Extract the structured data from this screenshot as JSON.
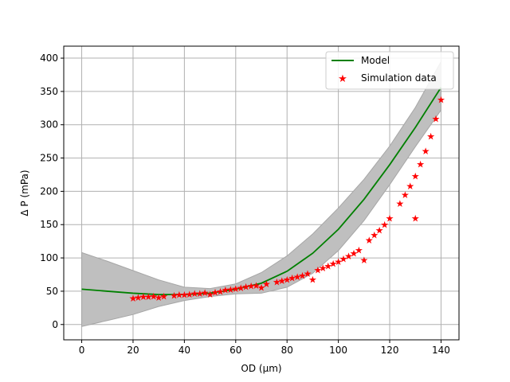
{
  "chart_data": {
    "type": "line",
    "title": "",
    "xlabel": "OD (µm)",
    "ylabel": "Δ P (mPa)",
    "xlim": [
      -7,
      147
    ],
    "ylim": [
      -23,
      418
    ],
    "xticks": [
      0,
      20,
      40,
      60,
      80,
      100,
      120,
      140
    ],
    "yticks": [
      0,
      50,
      100,
      150,
      200,
      250,
      300,
      350,
      400
    ],
    "grid": true,
    "legend": {
      "position": "upper-right"
    },
    "colors": {
      "model": "#008000",
      "band": "#bfbfbf",
      "band_edge": "#a6a6a6",
      "simulation": "#ff0000",
      "grid": "#b0b0b0"
    },
    "series": [
      {
        "name": "Model",
        "kind": "line",
        "x": [
          0,
          10,
          20,
          30,
          40,
          50,
          60,
          70,
          80,
          90,
          100,
          110,
          120,
          130,
          140
        ],
        "y": [
          53,
          50,
          47,
          45,
          45,
          47,
          53,
          62,
          80,
          107,
          143,
          188,
          240,
          296,
          356
        ]
      },
      {
        "name": "confidence band",
        "kind": "band",
        "x": [
          0,
          10,
          20,
          30,
          40,
          50,
          60,
          70,
          80,
          90,
          100,
          110,
          120,
          130,
          140
        ],
        "upper": [
          108,
          95,
          81,
          67,
          56,
          54,
          61,
          78,
          103,
          136,
          175,
          218,
          268,
          326,
          395
        ],
        "lower": [
          -3,
          6,
          15,
          27,
          36,
          42,
          46,
          47,
          56,
          77,
          111,
          156,
          210,
          267,
          322
        ]
      },
      {
        "name": "Simulation data",
        "kind": "scatter",
        "x": [
          20,
          22,
          24,
          26,
          28,
          30,
          32,
          36,
          38,
          40,
          42,
          44,
          46,
          48,
          50,
          52,
          54,
          56,
          58,
          60,
          62,
          64,
          66,
          68,
          70,
          72,
          76,
          78,
          80,
          82,
          84,
          86,
          88,
          90,
          92,
          94,
          96,
          98,
          100,
          102,
          104,
          106,
          108,
          110,
          112,
          114,
          116,
          118,
          120,
          124,
          126,
          128,
          130,
          130,
          132,
          134,
          136,
          138,
          140
        ],
        "y": [
          40,
          41,
          42,
          42,
          43,
          41,
          43,
          44,
          45,
          45,
          46,
          47,
          47,
          48,
          46,
          49,
          50,
          52,
          53,
          54,
          55,
          57,
          58,
          59,
          56,
          61,
          64,
          66,
          68,
          70,
          72,
          74,
          77,
          68,
          82,
          85,
          88,
          92,
          95,
          99,
          103,
          107,
          112,
          97,
          127,
          135,
          142,
          150,
          160,
          182,
          195,
          208,
          223,
          160,
          241,
          261,
          283,
          309,
          338
        ]
      }
    ]
  }
}
